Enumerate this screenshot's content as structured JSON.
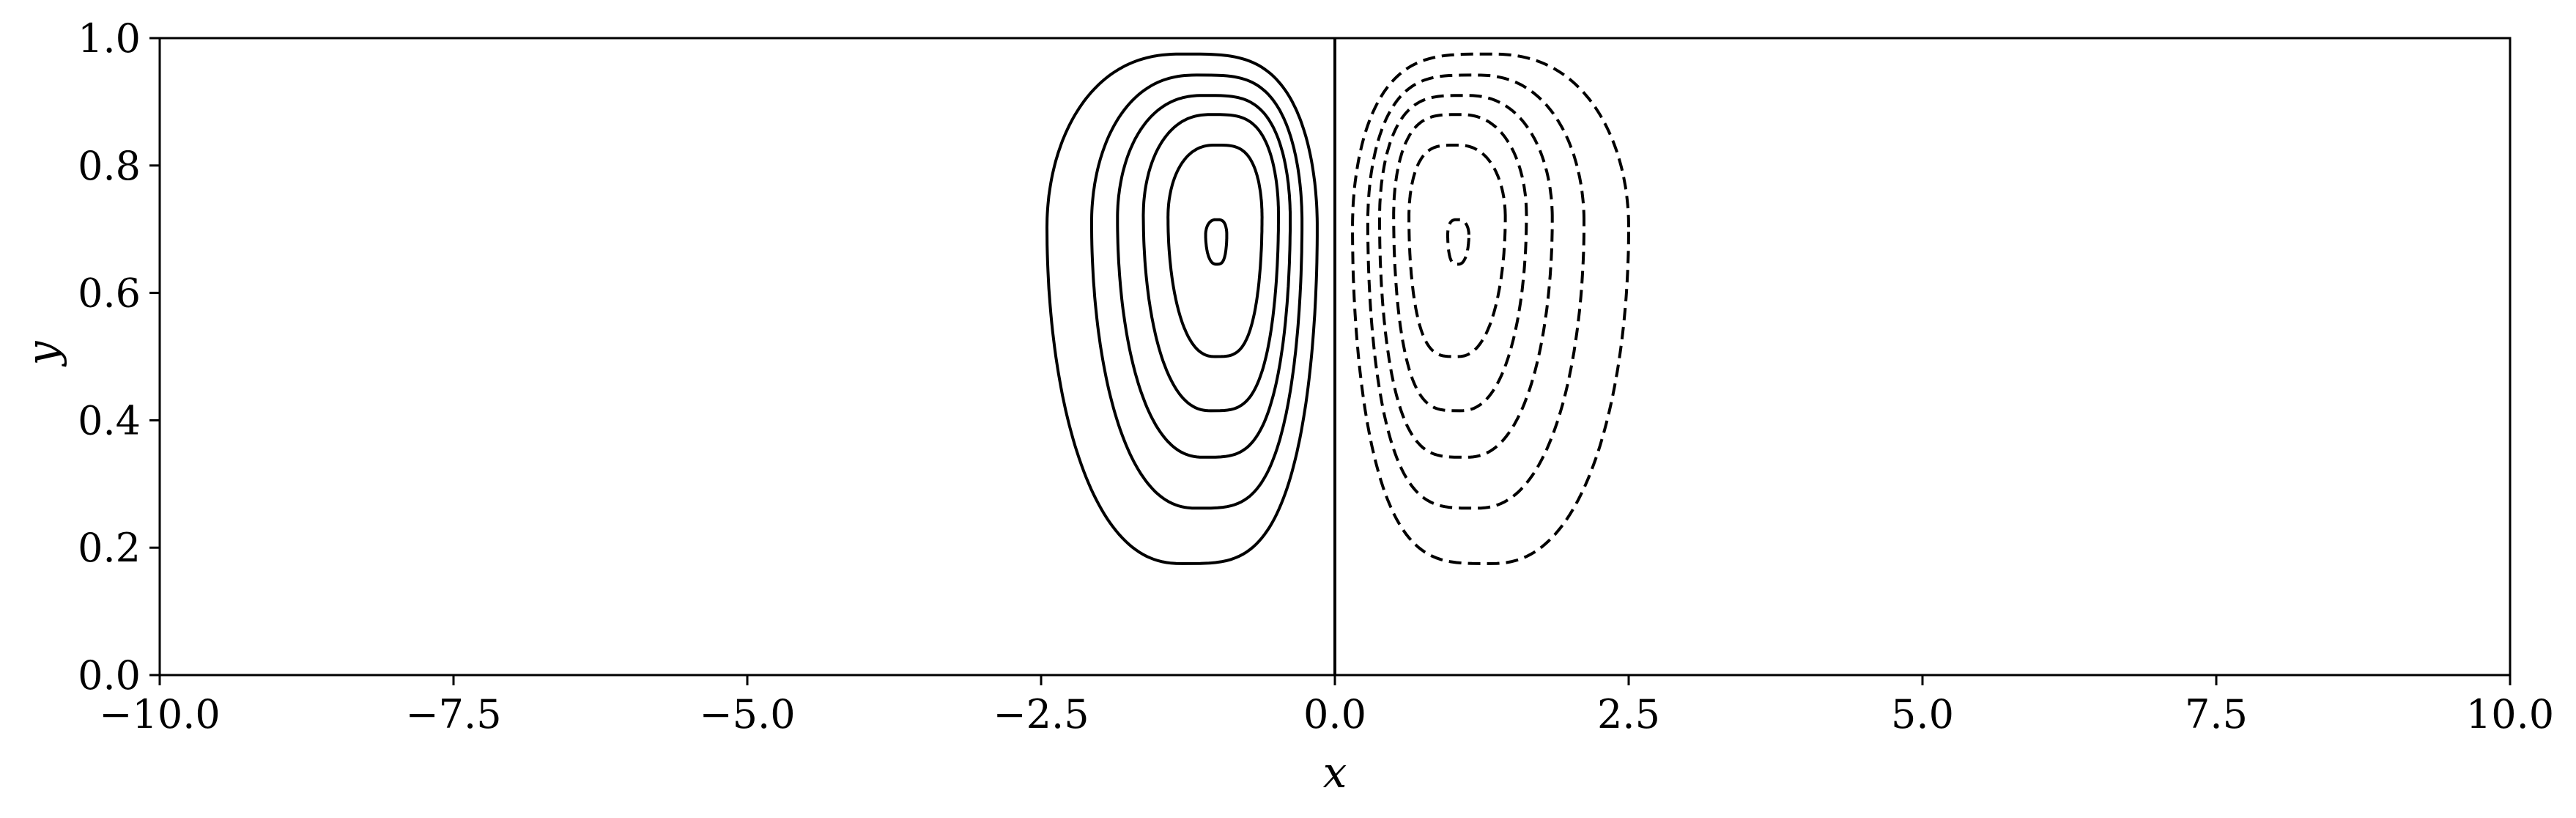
{
  "chart_data": {
    "type": "contour",
    "title": "",
    "xlabel": "x",
    "ylabel": "y",
    "xlim": [
      -10,
      10
    ],
    "ylim": [
      0,
      1
    ],
    "x_ticks": [
      -10,
      -7.5,
      -5,
      -2.5,
      0,
      2.5,
      5,
      7.5,
      10
    ],
    "x_tick_labels": [
      "−10.0",
      "−7.5",
      "−5.0",
      "−2.5",
      "0.0",
      "2.5",
      "5.0",
      "7.5",
      "10.0"
    ],
    "y_ticks": [
      0,
      0.2,
      0.4,
      0.6,
      0.8,
      1.0
    ],
    "y_tick_labels": [
      "0.0",
      "0.2",
      "0.4",
      "0.6",
      "0.8",
      "1.0"
    ],
    "grid": false,
    "line_color": "#000000",
    "zero_contour": {
      "style": "solid",
      "x": 0,
      "y_range": [
        0,
        1
      ]
    },
    "vortex_centers": [
      {
        "sign": "positive",
        "line_style": "solid",
        "center": [
          -1.0,
          0.68
        ]
      },
      {
        "sign": "negative",
        "line_style": "dashed",
        "center": [
          1.05,
          0.68
        ]
      }
    ],
    "contours_positive": [
      {
        "level": 1,
        "x_range": [
          -2.45,
          -0.15
        ],
        "y_range": [
          0.175,
          0.975
        ]
      },
      {
        "level": 2,
        "x_range": [
          -2.07,
          -0.28
        ],
        "y_range": [
          0.262,
          0.942
        ]
      },
      {
        "level": 3,
        "x_range": [
          -1.85,
          -0.38
        ],
        "y_range": [
          0.342,
          0.91
        ]
      },
      {
        "level": 4,
        "x_range": [
          -1.63,
          -0.48
        ],
        "y_range": [
          0.415,
          0.88
        ]
      },
      {
        "level": 5,
        "x_range": [
          -1.42,
          -0.62
        ],
        "y_range": [
          0.5,
          0.832
        ]
      },
      {
        "level": 6,
        "x_range": [
          -1.1,
          -0.92
        ],
        "y_range": [
          0.645,
          0.715
        ]
      }
    ],
    "contours_negative": [
      {
        "level": 1,
        "x_range": [
          0.15,
          2.5
        ],
        "y_range": [
          0.175,
          0.975
        ]
      },
      {
        "level": 2,
        "x_range": [
          0.28,
          2.12
        ],
        "y_range": [
          0.262,
          0.942
        ]
      },
      {
        "level": 3,
        "x_range": [
          0.38,
          1.85
        ],
        "y_range": [
          0.342,
          0.91
        ]
      },
      {
        "level": 4,
        "x_range": [
          0.5,
          1.63
        ],
        "y_range": [
          0.415,
          0.88
        ]
      },
      {
        "level": 5,
        "x_range": [
          0.63,
          1.45
        ],
        "y_range": [
          0.5,
          0.832
        ]
      },
      {
        "level": 6,
        "x_range": [
          0.96,
          1.14
        ],
        "y_range": [
          0.645,
          0.715
        ]
      }
    ]
  }
}
